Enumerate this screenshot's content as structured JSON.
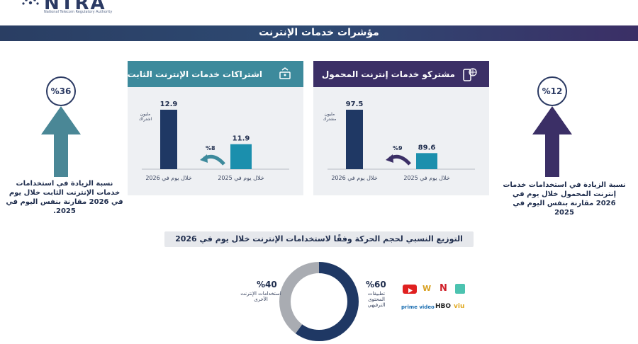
{
  "logo": {
    "name": "NTRA",
    "subtitle": "National Telecom Regulatory Authority"
  },
  "title": "مؤشرات خدمات الإنترنت",
  "fixed_panel": {
    "header": "اشتراكات خدمات الإنترنت الثابت",
    "unit_label": "مليون اشتراك",
    "change_label": "%8"
  },
  "mobile_panel": {
    "header": "مشتركو خدمات إنترنت المحمول",
    "unit_label": "مليون مشترك",
    "change_label": "%9"
  },
  "left_side": {
    "percent": "%36",
    "text": "نسبة الزيادة في استخدامات خدمات الإنترنت الثابت خلال يوم في 2026 مقارنة بنفس اليوم في 2025."
  },
  "right_side": {
    "percent": "%12",
    "text": "نسبة الزيادة في استخدامات خدمات إنترنت المحمول خلال يوم في 2026 مقارنة بنفس اليوم في 2025"
  },
  "distribution": {
    "title": "التوزيع النسبي لحجم الحركة وفقًا لاستخدامات الإنترنت خلال يوم في 2026",
    "left_pct": "%40",
    "left_label": "استخدامات الإنترنت الأخرى",
    "right_pct": "%60",
    "right_label": "تطبيقات المحتوى الترفيهي",
    "brands": [
      "YouTube",
      "W",
      "N",
      "prime video",
      "HBO",
      "viu"
    ]
  },
  "colors": {
    "navy": "#1f3864",
    "teal": "#1b8fad",
    "purple": "#3b2f66",
    "teal_header": "#3d8a9c",
    "donut_grey": "#a9acb2"
  },
  "chart_data": [
    {
      "type": "bar",
      "title": "اشتراكات خدمات الإنترنت الثابت",
      "ylabel": "مليون اشتراك",
      "categories": [
        "خلال يوم في 2026",
        "خلال يوم في 2025"
      ],
      "values": [
        12.9,
        11.9
      ],
      "annotation": "%8"
    },
    {
      "type": "bar",
      "title": "مشتركو خدمات إنترنت المحمول",
      "ylabel": "مليون مشترك",
      "categories": [
        "خلال يوم في 2026",
        "خلال يوم في 2025"
      ],
      "values": [
        97.5,
        89.6
      ],
      "annotation": "%9"
    },
    {
      "type": "pie",
      "title": "التوزيع النسبي لحجم الحركة وفقًا لاستخدامات الإنترنت خلال يوم في 2026",
      "categories": [
        "تطبيقات المحتوى الترفيهي",
        "استخدامات الإنترنت الأخرى"
      ],
      "values": [
        60,
        40
      ]
    }
  ]
}
